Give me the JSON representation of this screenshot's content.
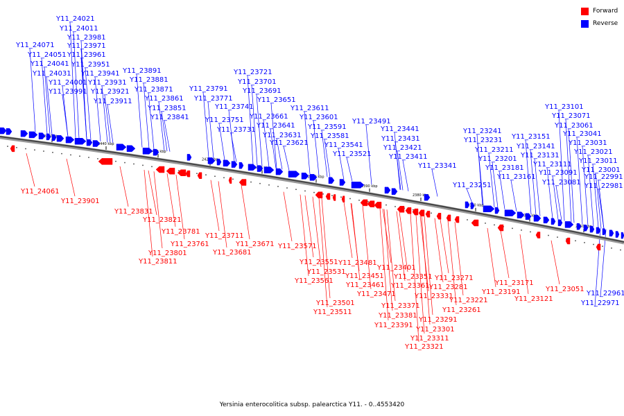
{
  "legend": {
    "forward_label": "Forward",
    "reverse_label": "Reverse",
    "forward_color": "#ff0000",
    "reverse_color": "#0000ff"
  },
  "caption": "Yersinia enterocolitica subsp. palearctica Y11. - 0..4553420",
  "ticks": [
    "2460 kbp",
    "2440 kbp",
    "2430 kbp",
    "2420 kbp",
    "2410 kbp",
    "2400 kbp",
    "2390 kbp",
    "2380 kbp",
    "2370 kbp",
    "2360 kbp",
    "2350 kbp"
  ],
  "reverse_labels": [
    "Y11_24021",
    "Y11_24011",
    "Y11_23981",
    "Y11_23971",
    "Y11_24071",
    "Y11_23961",
    "Y11_24051",
    "Y11_23951",
    "Y11_24041",
    "Y11_23941",
    "Y11_24031",
    "Y11_23931",
    "Y11_24001",
    "Y11_23921",
    "Y11_23991",
    "Y11_23911",
    "Y11_23891",
    "Y11_23881",
    "Y11_23871",
    "Y11_23861",
    "Y11_23851",
    "Y11_23841",
    "Y11_23791",
    "Y11_23771",
    "Y11_23741",
    "Y11_23751",
    "Y11_23731",
    "Y11_23721",
    "Y11_23701",
    "Y11_23691",
    "Y11_23651",
    "Y11_23661",
    "Y11_23641",
    "Y11_23631",
    "Y11_23621",
    "Y11_23611",
    "Y11_23601",
    "Y11_23591",
    "Y11_23581",
    "Y11_23541",
    "Y11_23521",
    "Y11_23491",
    "Y11_23441",
    "Y11_23431",
    "Y11_23421",
    "Y11_23411",
    "Y11_23341",
    "Y11_23241",
    "Y11_23231",
    "Y11_23211",
    "Y11_23201",
    "Y11_23181",
    "Y11_23251",
    "Y11_23161",
    "Y11_23151",
    "Y11_23141",
    "Y11_23131",
    "Y11_23111",
    "Y11_23091",
    "Y11_23081",
    "Y11_23101",
    "Y11_23071",
    "Y11_23061",
    "Y11_23041",
    "Y11_23031",
    "Y11_23021",
    "Y11_23011",
    "Y11_23001",
    "Y11_22991",
    "Y11_22981",
    "Y11_22961",
    "Y11_22971"
  ],
  "forward_labels": [
    "Y11_24061",
    "Y11_23901",
    "Y11_23831",
    "Y11_23821",
    "Y11_23781",
    "Y11_23761",
    "Y11_23801",
    "Y11_23811",
    "Y11_23711",
    "Y11_23671",
    "Y11_23681",
    "Y11_23571",
    "Y11_23551",
    "Y11_23531",
    "Y11_23561",
    "Y11_23481",
    "Y11_23451",
    "Y11_23461",
    "Y11_23471",
    "Y11_23501",
    "Y11_23511",
    "Y11_23401",
    "Y11_23351",
    "Y11_23361",
    "Y11_23331",
    "Y11_23371",
    "Y11_23381",
    "Y11_23391",
    "Y11_23271",
    "Y11_23281",
    "Y11_23171",
    "Y11_23191",
    "Y11_23221",
    "Y11_23261",
    "Y11_23291",
    "Y11_23301",
    "Y11_23311",
    "Y11_23321",
    "Y11_23121",
    "Y11_23051"
  ]
}
